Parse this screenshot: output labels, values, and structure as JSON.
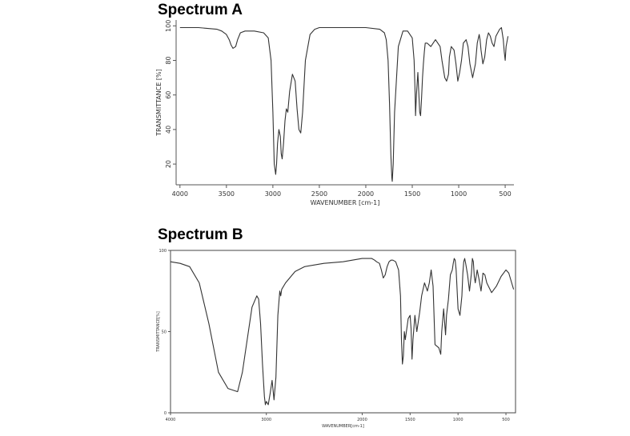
{
  "chart_data": [
    {
      "type": "line",
      "panel_title": "Spectrum A",
      "xlabel": "WAVENUMBER [cm-1]",
      "ylabel": "TRANSMITTANCE [%]",
      "xlim": [
        4050,
        380
      ],
      "ylim": [
        8,
        102
      ],
      "x_ticks": [
        4000,
        3500,
        3000,
        2500,
        2000,
        1500,
        1000,
        500
      ],
      "y_ticks": [
        20,
        40,
        60,
        80,
        100
      ],
      "grid": false,
      "series": [
        {
          "x": [
            4000,
            3800,
            3600,
            3550,
            3500,
            3470,
            3450,
            3430,
            3400,
            3380,
            3350,
            3300,
            3200,
            3100,
            3050,
            3020,
            3000,
            2985,
            2970,
            2960,
            2950,
            2935,
            2920,
            2910,
            2900,
            2885,
            2870,
            2855,
            2840,
            2820,
            2790,
            2760,
            2740,
            2720,
            2700,
            2680,
            2650,
            2600,
            2550,
            2500,
            2000,
            1850,
            1800,
            1780,
            1760,
            1745,
            1730,
            1720,
            1715,
            1705,
            1690,
            1650,
            1600,
            1550,
            1500,
            1480,
            1470,
            1465,
            1455,
            1440,
            1430,
            1420,
            1410,
            1400,
            1390,
            1380,
            1370,
            1360,
            1340,
            1300,
            1250,
            1200,
            1180,
            1150,
            1130,
            1110,
            1100,
            1080,
            1050,
            1030,
            1010,
            990,
            970,
            950,
            920,
            900,
            880,
            850,
            820,
            800,
            780,
            770,
            760,
            740,
            720,
            700,
            680,
            660,
            640,
            620,
            600,
            560,
            540,
            520,
            510,
            500,
            490,
            470
          ],
          "y": [
            99,
            99,
            98,
            97,
            95,
            92,
            89,
            87,
            88,
            92,
            96,
            97,
            97,
            96,
            93,
            80,
            50,
            20,
            14,
            20,
            32,
            40,
            36,
            26,
            23,
            32,
            45,
            52,
            50,
            62,
            72,
            68,
            52,
            40,
            38,
            50,
            80,
            95,
            98,
            99,
            99,
            98,
            96,
            92,
            80,
            55,
            25,
            12,
            10,
            20,
            50,
            88,
            97,
            97,
            93,
            80,
            62,
            48,
            60,
            73,
            62,
            50,
            48,
            58,
            70,
            78,
            85,
            90,
            90,
            88,
            92,
            88,
            80,
            70,
            68,
            72,
            82,
            88,
            86,
            78,
            68,
            73,
            80,
            90,
            92,
            88,
            78,
            70,
            78,
            90,
            95,
            92,
            86,
            78,
            82,
            92,
            96,
            94,
            90,
            88,
            94,
            98,
            99,
            92,
            85,
            80,
            88,
            94
          ]
        }
      ]
    },
    {
      "type": "line",
      "panel_title": "Spectrum B",
      "xlabel": "WAVENUMBER[cm-1]",
      "ylabel": "TRANSMITTANCE[%]",
      "xlim": [
        4000,
        400
      ],
      "ylim": [
        0,
        100
      ],
      "x_ticks": [
        4000,
        3000,
        2000,
        1500,
        1000,
        500
      ],
      "x_tick_labels": [
        "4000",
        "3000",
        "2000",
        "1500",
        "1000",
        "500"
      ],
      "y_ticks": [
        0,
        50,
        100
      ],
      "grid": false,
      "series": [
        {
          "x": [
            4000,
            3900,
            3800,
            3700,
            3600,
            3500,
            3400,
            3300,
            3250,
            3200,
            3150,
            3100,
            3080,
            3060,
            3040,
            3020,
            3010,
            3000,
            2980,
            2960,
            2940,
            2920,
            2900,
            2880,
            2860,
            2850,
            2840,
            2800,
            2700,
            2600,
            2400,
            2200,
            2000,
            1950,
            1900,
            1870,
            1850,
            1820,
            1800,
            1780,
            1760,
            1740,
            1720,
            1700,
            1680,
            1650,
            1620,
            1600,
            1590,
            1580,
            1570,
            1560,
            1550,
            1520,
            1500,
            1490,
            1480,
            1470,
            1450,
            1430,
            1400,
            1380,
            1350,
            1320,
            1300,
            1280,
            1260,
            1250,
            1240,
            1200,
            1180,
            1170,
            1150,
            1130,
            1120,
            1100,
            1080,
            1060,
            1050,
            1040,
            1030,
            1020,
            1000,
            980,
            960,
            950,
            940,
            930,
            920,
            900,
            880,
            860,
            850,
            840,
            830,
            820,
            800,
            780,
            760,
            750,
            740,
            720,
            700,
            650,
            600,
            550,
            500,
            470,
            460,
            440,
            420
          ],
          "y": [
            93,
            92,
            90,
            80,
            55,
            25,
            15,
            13,
            25,
            45,
            65,
            72,
            70,
            55,
            30,
            10,
            5,
            7,
            5,
            12,
            20,
            8,
            22,
            60,
            75,
            72,
            76,
            80,
            87,
            90,
            92,
            93,
            95,
            95,
            95,
            94,
            93,
            92,
            88,
            83,
            85,
            90,
            93,
            94,
            94,
            93,
            88,
            72,
            45,
            30,
            35,
            50,
            45,
            58,
            60,
            52,
            33,
            45,
            60,
            50,
            62,
            72,
            80,
            75,
            80,
            88,
            78,
            60,
            42,
            40,
            36,
            50,
            64,
            48,
            60,
            70,
            85,
            88,
            92,
            95,
            94,
            88,
            64,
            60,
            72,
            86,
            93,
            95,
            92,
            85,
            75,
            86,
            95,
            93,
            84,
            80,
            88,
            82,
            75,
            80,
            86,
            85,
            80,
            74,
            78,
            84,
            88,
            86,
            84,
            80,
            76
          ]
        }
      ]
    }
  ]
}
